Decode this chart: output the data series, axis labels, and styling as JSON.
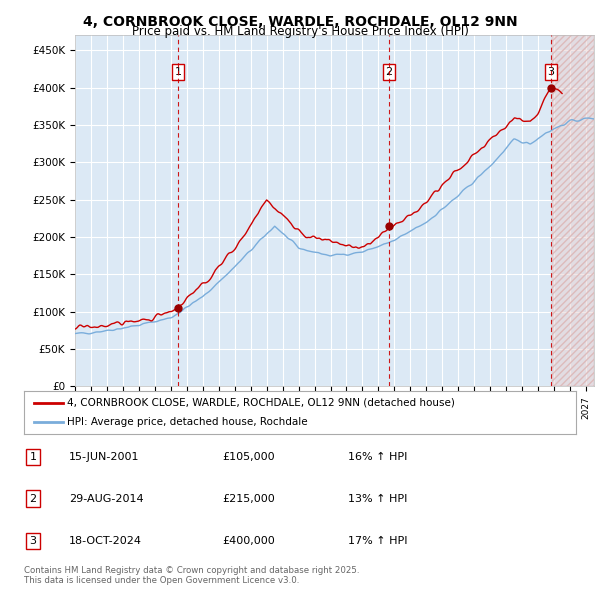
{
  "title": "4, CORNBROOK CLOSE, WARDLE, ROCHDALE, OL12 9NN",
  "subtitle": "Price paid vs. HM Land Registry's House Price Index (HPI)",
  "ylim": [
    0,
    470000
  ],
  "yticks": [
    0,
    50000,
    100000,
    150000,
    200000,
    250000,
    300000,
    350000,
    400000,
    450000
  ],
  "ytick_labels": [
    "£0",
    "£50K",
    "£100K",
    "£150K",
    "£200K",
    "£250K",
    "£300K",
    "£350K",
    "£400K",
    "£450K"
  ],
  "xlim_start": 1995.0,
  "xlim_end": 2027.5,
  "sales": [
    {
      "date_year": 2001.46,
      "price": 105000,
      "label": "1"
    },
    {
      "date_year": 2014.66,
      "price": 215000,
      "label": "2"
    },
    {
      "date_year": 2024.8,
      "price": 400000,
      "label": "3"
    }
  ],
  "sale_dates_info": [
    {
      "num": "1",
      "date": "15-JUN-2001",
      "price": "£105,000",
      "hpi": "16% ↑ HPI"
    },
    {
      "num": "2",
      "date": "29-AUG-2014",
      "price": "£215,000",
      "hpi": "13% ↑ HPI"
    },
    {
      "num": "3",
      "date": "18-OCT-2024",
      "price": "£400,000",
      "hpi": "17% ↑ HPI"
    }
  ],
  "legend_line1": "4, CORNBROOK CLOSE, WARDLE, ROCHDALE, OL12 9NN (detached house)",
  "legend_line2": "HPI: Average price, detached house, Rochdale",
  "footer": "Contains HM Land Registry data © Crown copyright and database right 2025.\nThis data is licensed under the Open Government Licence v3.0.",
  "line_color_red": "#cc0000",
  "line_color_blue": "#7aaddb",
  "background_plot": "#dce9f5",
  "background_fig": "#ffffff",
  "grid_color": "#ffffff"
}
